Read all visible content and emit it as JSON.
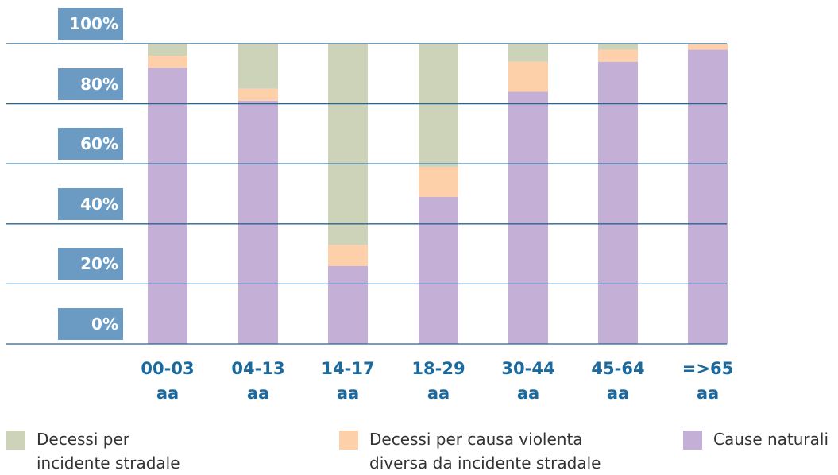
{
  "chart_data": {
    "type": "stacked-bar",
    "categories": [
      "00-03 aa",
      "04-13 aa",
      "14-17 aa",
      "18-29 aa",
      "30-44 aa",
      "45-64 aa",
      "=>65 aa"
    ],
    "series": [
      {
        "name": "Decessi per incidente stradale",
        "color": "#cdd3b8",
        "values": [
          4,
          15,
          67,
          41,
          6,
          2,
          0
        ]
      },
      {
        "name": "Decessi per causa violenta diversa da incidente stradale",
        "color": "#fdd0aa",
        "values": [
          4,
          4,
          7,
          10,
          10,
          4,
          2
        ]
      },
      {
        "name": "Cause naturali",
        "color": "#c4afd6",
        "values": [
          92,
          81,
          26,
          49,
          84,
          94,
          98
        ]
      }
    ],
    "ylim": [
      0,
      100
    ],
    "yticks": [
      {
        "value": 0,
        "label": "0%"
      },
      {
        "value": 20,
        "label": "20%"
      },
      {
        "value": 40,
        "label": "40%"
      },
      {
        "value": 60,
        "label": "60%"
      },
      {
        "value": 80,
        "label": "80%"
      },
      {
        "value": 100,
        "label": "100%"
      }
    ],
    "grid": true
  }
}
